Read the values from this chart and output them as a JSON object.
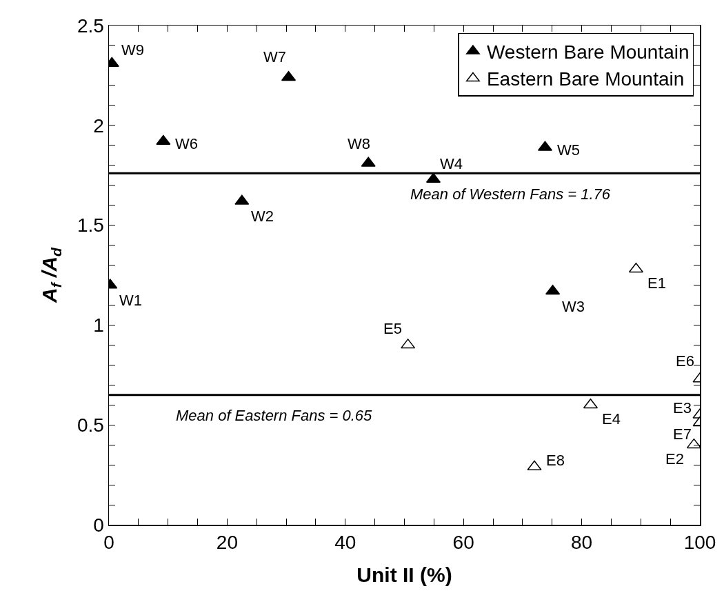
{
  "chart_data": {
    "type": "scatter",
    "xlabel": "Unit II (%)",
    "ylabel": "A$_{f}$ /A$_{d}$",
    "series": [
      {
        "name": "Western Bare Mountain",
        "color": "#000000",
        "x": [
          0.2,
          22.5,
          75.1,
          54.9,
          73.8,
          9.2,
          30.4,
          43.9,
          0.5
        ],
        "values": [
          1.2,
          1.62,
          1.17,
          1.73,
          1.89,
          1.92,
          2.24,
          1.81,
          2.31
        ]
      },
      {
        "name": "Eastern Bare Mountain",
        "color": "#ffffff",
        "x": [
          89.2,
          99,
          100,
          81.5,
          50.6,
          100,
          100,
          72
        ],
        "values": [
          1.28,
          0.4,
          0.55,
          0.6,
          0.9,
          0.73,
          0.51,
          0.29
        ]
      }
    ],
    "marker": "triangle",
    "xlim": [
      0,
      100
    ],
    "ylim": [
      0,
      2.5
    ],
    "xticks": [
      0,
      {
        "value": 5,
        "label": null
      },
      {
        "value": 10,
        "label": null
      },
      {
        "value": 15,
        "label": null
      },
      20,
      {
        "value": 25,
        "label": null
      },
      {
        "value": 30,
        "label": null
      },
      {
        "value": 35,
        "label": null
      },
      40,
      {
        "value": 45,
        "label": null
      },
      {
        "value": 50,
        "label": null
      },
      {
        "value": 55,
        "label": null
      },
      60,
      {
        "value": 65,
        "label": null
      },
      {
        "value": 70,
        "label": null
      },
      {
        "value": 75,
        "label": null
      },
      80,
      {
        "value": 85,
        "label": null
      },
      {
        "value": 90,
        "label": null
      },
      {
        "value": 95,
        "label": null
      },
      100
    ],
    "yticks": [
      0,
      {
        "value": 0.1,
        "label": null
      },
      {
        "value": 0.2,
        "label": null
      },
      {
        "value": 0.3,
        "label": null
      },
      {
        "value": 0.4,
        "label": null
      },
      0.5,
      {
        "value": 0.6,
        "label": null
      },
      {
        "value": 0.7,
        "label": null
      },
      {
        "value": 0.8,
        "label": null
      },
      {
        "value": 0.9,
        "label": null
      },
      1,
      {
        "value": 1.1,
        "label": null
      },
      {
        "value": 1.2,
        "label": null
      },
      {
        "value": 1.3,
        "label": null
      },
      {
        "value": 1.4,
        "label": null
      },
      1.5,
      {
        "value": 1.6,
        "label": null
      },
      {
        "value": 1.7,
        "label": null
      },
      {
        "value": 1.8,
        "label": null
      },
      {
        "value": 1.9,
        "label": null
      },
      2,
      {
        "value": 2.1,
        "label": null
      },
      {
        "value": 2.2,
        "label": null
      },
      {
        "value": 2.3,
        "label": null
      },
      {
        "value": 2.4,
        "label": null
      },
      2.5
    ],
    "ref_lines": [
      {
        "axis": "y",
        "value": 1.76,
        "label": "Mean of Western Fans = 1.76",
        "color": "#000000"
      },
      {
        "axis": "y",
        "value": 0.65,
        "label": "Mean of Eastern Fans = 0.65",
        "color": "#000000"
      }
    ],
    "annotations": [
      {
        "text": "W1",
        "x": 0.2,
        "y": 1.2
      },
      {
        "text": "W2",
        "x": 22.5,
        "y": 1.62
      },
      {
        "text": "W3",
        "x": 75.1,
        "y": 1.17
      },
      {
        "text": "W4",
        "x": 54.9,
        "y": 1.73
      },
      {
        "text": "W5",
        "x": 73.8,
        "y": 1.89
      },
      {
        "text": "W6",
        "x": 9.2,
        "y": 1.92
      },
      {
        "text": "W7",
        "x": 30.4,
        "y": 2.24
      },
      {
        "text": "W8",
        "x": 43.9,
        "y": 1.81
      },
      {
        "text": "W9",
        "x": 0.5,
        "y": 2.31
      },
      {
        "text": "E1",
        "x": 89.2,
        "y": 1.28
      },
      {
        "text": "E2",
        "x": 99,
        "y": 0.4
      },
      {
        "text": "E3",
        "x": 100,
        "y": 0.55
      },
      {
        "text": "E4",
        "x": 81.5,
        "y": 0.6
      },
      {
        "text": "E5",
        "x": 50.6,
        "y": 0.9
      },
      {
        "text": "E6",
        "x": 100,
        "y": 0.73
      },
      {
        "text": "E7",
        "x": 100,
        "y": 0.51
      },
      {
        "text": "E8",
        "x": 72,
        "y": 0.29
      }
    ],
    "grid": false,
    "legend": "top right"
  }
}
